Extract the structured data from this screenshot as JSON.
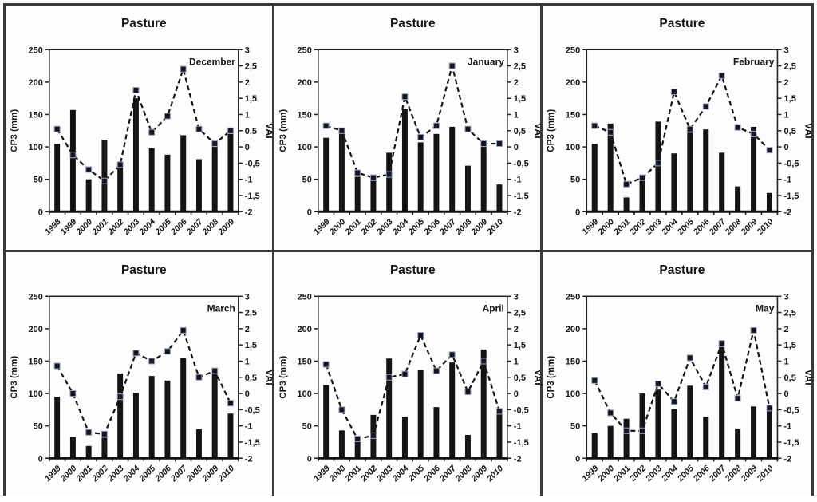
{
  "figure": {
    "background": "#fcfcfc",
    "border_color": "#3a3a3a",
    "bar_color": "#141414",
    "line_color": "#141414",
    "marker_fill": "#16161e",
    "marker_stroke": "#9aa4c4"
  },
  "chart_data": [
    {
      "type": "bar+line",
      "title": "Pasture",
      "panel_label": "December",
      "categories": [
        "1998",
        "1999",
        "2000",
        "2001",
        "2002",
        "2003",
        "2004",
        "2005",
        "2006",
        "2007",
        "2008",
        "2009"
      ],
      "series": [
        {
          "name": "CP3 (mm)",
          "kind": "bar",
          "axis": "left",
          "values": [
            105,
            157,
            50,
            111,
            68,
            175,
            98,
            88,
            118,
            81,
            100,
            120
          ]
        },
        {
          "name": "VAI",
          "kind": "line",
          "axis": "right",
          "style": "dashed",
          "marker": "square",
          "values": [
            0.55,
            -0.25,
            -0.7,
            -1.05,
            -0.55,
            1.75,
            0.45,
            0.95,
            2.4,
            0.55,
            0.1,
            0.5
          ]
        }
      ],
      "left_axis": {
        "label": "CP3 (mm)",
        "min": 0,
        "max": 250,
        "tick_step": 50,
        "tick_labels": [
          "0",
          "50",
          "100",
          "150",
          "200",
          "250"
        ]
      },
      "right_axis": {
        "label": "VAI",
        "min": -2,
        "max": 3,
        "tick_step": 0.5,
        "tick_labels": [
          "3",
          "2,5",
          "2",
          "1,5",
          "1",
          "0,5",
          "0",
          "-0,5",
          "-1",
          "-1,5",
          "-2"
        ]
      },
      "grid": false,
      "legend": "none"
    },
    {
      "type": "bar+line",
      "title": "Pasture",
      "panel_label": "January",
      "categories": [
        "1999",
        "2000",
        "2001",
        "2002",
        "2003",
        "2004",
        "2005",
        "2006",
        "2007",
        "2008",
        "2009",
        "2010"
      ],
      "series": [
        {
          "name": "CP3 (mm)",
          "kind": "bar",
          "axis": "left",
          "values": [
            114,
            122,
            54,
            48,
            91,
            158,
            107,
            120,
            131,
            71,
            100,
            42
          ]
        },
        {
          "name": "VAI",
          "kind": "line",
          "axis": "right",
          "style": "dashed",
          "marker": "square",
          "values": [
            0.65,
            0.5,
            -0.8,
            -0.95,
            -0.85,
            1.55,
            0.3,
            0.65,
            2.5,
            0.55,
            0.1,
            0.1
          ]
        }
      ],
      "left_axis": {
        "label": "CP3 (mm)",
        "min": 0,
        "max": 250,
        "tick_step": 50,
        "tick_labels": [
          "0",
          "50",
          "100",
          "150",
          "200",
          "250"
        ]
      },
      "right_axis": {
        "label": "VAI",
        "min": -2,
        "max": 3,
        "tick_step": 0.5,
        "tick_labels": [
          "3",
          "2,5",
          "2",
          "1,5",
          "1",
          "0,5",
          "0",
          "-0,5",
          "-1",
          "-1,5",
          "-2"
        ]
      },
      "grid": false,
      "legend": "none"
    },
    {
      "type": "bar+line",
      "title": "Pasture",
      "panel_label": "February",
      "categories": [
        "1999",
        "2000",
        "2001",
        "2002",
        "2003",
        "2004",
        "2005",
        "2006",
        "2007",
        "2008",
        "2009",
        "2010"
      ],
      "series": [
        {
          "name": "CP3 (mm)",
          "kind": "bar",
          "axis": "left",
          "values": [
            105,
            136,
            22,
            50,
            139,
            90,
            122,
            127,
            91,
            39,
            131,
            29
          ]
        },
        {
          "name": "VAI",
          "kind": "line",
          "axis": "right",
          "style": "dashed",
          "marker": "square",
          "values": [
            0.65,
            0.45,
            -1.15,
            -0.95,
            -0.5,
            1.7,
            0.55,
            1.25,
            2.2,
            0.6,
            0.4,
            -0.1
          ]
        }
      ],
      "left_axis": {
        "label": "CP3 (mm)",
        "min": 0,
        "max": 250,
        "tick_step": 50,
        "tick_labels": [
          "0",
          "50",
          "100",
          "150",
          "200",
          "250"
        ]
      },
      "right_axis": {
        "label": "VAI",
        "min": -2,
        "max": 3,
        "tick_step": 0.5,
        "tick_labels": [
          "3",
          "2,5",
          "2",
          "1,5",
          "1",
          "0,5",
          "0",
          "-0,5",
          "-1",
          "-1,5",
          "-2"
        ]
      },
      "grid": false,
      "legend": "none"
    },
    {
      "type": "bar+line",
      "title": "Pasture",
      "panel_label": "March",
      "categories": [
        "1999",
        "2000",
        "2001",
        "2002",
        "2003",
        "2004",
        "2005",
        "2006",
        "2007",
        "2008",
        "2009",
        "2010"
      ],
      "series": [
        {
          "name": "CP3 (mm)",
          "kind": "bar",
          "axis": "left",
          "values": [
            95,
            33,
            19,
            32,
            131,
            101,
            127,
            120,
            155,
            45,
            130,
            69
          ]
        },
        {
          "name": "VAI",
          "kind": "line",
          "axis": "right",
          "style": "dashed",
          "marker": "square",
          "values": [
            0.85,
            0.0,
            -1.2,
            -1.25,
            -0.1,
            1.25,
            1.0,
            1.3,
            1.95,
            0.5,
            0.7,
            -0.3
          ]
        }
      ],
      "left_axis": {
        "label": "CP3 (mm)",
        "min": 0,
        "max": 250,
        "tick_step": 50,
        "tick_labels": [
          "0",
          "50",
          "100",
          "150",
          "200",
          "250"
        ]
      },
      "right_axis": {
        "label": "VAI",
        "min": -2,
        "max": 3,
        "tick_step": 0.5,
        "tick_labels": [
          "3",
          "2,5",
          "2",
          "1,5",
          "1",
          "0,5",
          "0",
          "-0,5",
          "-1",
          "-1,5",
          "-2"
        ]
      },
      "grid": false,
      "legend": "none"
    },
    {
      "type": "bar+line",
      "title": "Pasture",
      "panel_label": "April",
      "categories": [
        "1999",
        "2000",
        "2001",
        "2002",
        "2003",
        "2004",
        "2005",
        "2006",
        "2007",
        "2008",
        "2009",
        "2010"
      ],
      "series": [
        {
          "name": "CP3 (mm)",
          "kind": "bar",
          "axis": "left",
          "values": [
            113,
            43,
            28,
            67,
            154,
            64,
            136,
            79,
            148,
            36,
            168,
            70
          ]
        },
        {
          "name": "VAI",
          "kind": "line",
          "axis": "right",
          "style": "dashed",
          "marker": "square",
          "values": [
            0.9,
            -0.5,
            -1.4,
            -1.3,
            0.5,
            0.6,
            1.8,
            0.7,
            1.2,
            0.05,
            1.0,
            -0.55
          ]
        }
      ],
      "left_axis": {
        "label": "CP3 (mm)",
        "min": 0,
        "max": 250,
        "tick_step": 50,
        "tick_labels": [
          "0",
          "50",
          "100",
          "150",
          "200",
          "250"
        ]
      },
      "right_axis": {
        "label": "VAI",
        "min": -2,
        "max": 3,
        "tick_step": 0.5,
        "tick_labels": [
          "3",
          "2,5",
          "2",
          "1,5",
          "1",
          "0,5",
          "0",
          "-0,5",
          "-1",
          "-1,5",
          "-2"
        ]
      },
      "grid": false,
      "legend": "none"
    },
    {
      "type": "bar+line",
      "title": "Pasture",
      "panel_label": "May",
      "categories": [
        "1999",
        "2000",
        "2001",
        "2002",
        "2003",
        "2004",
        "2005",
        "2006",
        "2007",
        "2008",
        "2009",
        "2010"
      ],
      "series": [
        {
          "name": "CP3 (mm)",
          "kind": "bar",
          "axis": "left",
          "values": [
            39,
            50,
            61,
            100,
            106,
            76,
            112,
            64,
            172,
            46,
            80,
            74
          ]
        },
        {
          "name": "VAI",
          "kind": "line",
          "axis": "right",
          "style": "dashed",
          "marker": "square",
          "values": [
            0.4,
            -0.6,
            -1.15,
            -1.15,
            0.3,
            -0.25,
            1.1,
            0.2,
            1.55,
            -0.15,
            1.95,
            -0.45
          ]
        }
      ],
      "left_axis": {
        "label": "CP3 (mm)",
        "min": 0,
        "max": 250,
        "tick_step": 50,
        "tick_labels": [
          "0",
          "50",
          "100",
          "150",
          "200",
          "250"
        ]
      },
      "right_axis": {
        "label": "VAI",
        "min": -2,
        "max": 3,
        "tick_step": 0.5,
        "tick_labels": [
          "3",
          "2,5",
          "2",
          "1,5",
          "1",
          "0,5",
          "0",
          "-0,5",
          "-1",
          "-1,5",
          "-2"
        ]
      },
      "grid": false,
      "legend": "none"
    }
  ]
}
